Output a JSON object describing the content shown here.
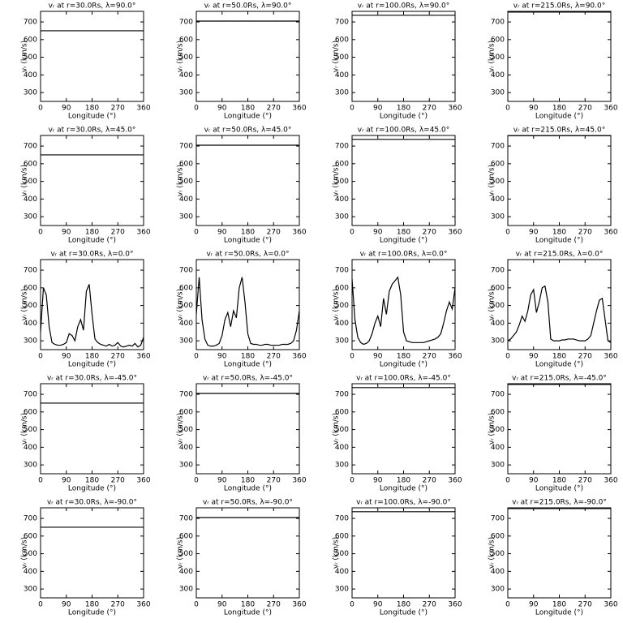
{
  "chart_data": [
    {
      "type": "line",
      "title": "vᵣ at r=30.0Rs, λ=90.0°",
      "xlabel": "Longitude (°)",
      "ylabel": "vᵣ (km/s)",
      "x": [
        0,
        360
      ],
      "values": [
        650,
        650
      ],
      "xlim": [
        0,
        360
      ],
      "ylim": [
        250,
        760
      ],
      "xticks": [
        0,
        90,
        180,
        270,
        360
      ],
      "yticks": [
        300,
        400,
        500,
        600,
        700
      ],
      "color": "#000000"
    },
    {
      "type": "line",
      "title": "vᵣ at r=50.0Rs, λ=90.0°",
      "xlabel": "Longitude (°)",
      "ylabel": "vᵣ (km/s)",
      "x": [
        0,
        360
      ],
      "values": [
        705,
        705
      ],
      "xlim": [
        0,
        360
      ],
      "ylim": [
        250,
        760
      ],
      "xticks": [
        0,
        90,
        180,
        270,
        360
      ],
      "yticks": [
        300,
        400,
        500,
        600,
        700
      ],
      "color": "#000000"
    },
    {
      "type": "line",
      "title": "vᵣ at r=100.0Rs, λ=90.0°",
      "xlabel": "Longitude (°)",
      "ylabel": "vᵣ (km/s)",
      "x": [
        0,
        360
      ],
      "values": [
        738,
        738
      ],
      "xlim": [
        0,
        360
      ],
      "ylim": [
        250,
        760
      ],
      "xticks": [
        0,
        90,
        180,
        270,
        360
      ],
      "yticks": [
        300,
        400,
        500,
        600,
        700
      ],
      "color": "#000000"
    },
    {
      "type": "line",
      "title": "vᵣ at r=215.0Rs, λ=90.0°",
      "xlabel": "Longitude (°)",
      "ylabel": "vᵣ (km/s)",
      "x": [
        0,
        360
      ],
      "values": [
        756,
        756
      ],
      "xlim": [
        0,
        360
      ],
      "ylim": [
        250,
        760
      ],
      "xticks": [
        0,
        90,
        180,
        270,
        360
      ],
      "yticks": [
        300,
        400,
        500,
        600,
        700
      ],
      "color": "#000000"
    },
    {
      "type": "line",
      "title": "vᵣ at r=30.0Rs, λ=45.0°",
      "xlabel": "Longitude (°)",
      "ylabel": "vᵣ (km/s)",
      "x": [
        0,
        360
      ],
      "values": [
        650,
        650
      ],
      "xlim": [
        0,
        360
      ],
      "ylim": [
        250,
        760
      ],
      "xticks": [
        0,
        90,
        180,
        270,
        360
      ],
      "yticks": [
        300,
        400,
        500,
        600,
        700
      ],
      "color": "#000000"
    },
    {
      "type": "line",
      "title": "vᵣ at r=50.0Rs, λ=45.0°",
      "xlabel": "Longitude (°)",
      "ylabel": "vᵣ (km/s)",
      "x": [
        0,
        360
      ],
      "values": [
        705,
        705
      ],
      "xlim": [
        0,
        360
      ],
      "ylim": [
        250,
        760
      ],
      "xticks": [
        0,
        90,
        180,
        270,
        360
      ],
      "yticks": [
        300,
        400,
        500,
        600,
        700
      ],
      "color": "#000000"
    },
    {
      "type": "line",
      "title": "vᵣ at r=100.0Rs, λ=45.0°",
      "xlabel": "Longitude (°)",
      "ylabel": "vᵣ (km/s)",
      "x": [
        0,
        360
      ],
      "values": [
        738,
        738
      ],
      "xlim": [
        0,
        360
      ],
      "ylim": [
        250,
        760
      ],
      "xticks": [
        0,
        90,
        180,
        270,
        360
      ],
      "yticks": [
        300,
        400,
        500,
        600,
        700
      ],
      "color": "#000000"
    },
    {
      "type": "line",
      "title": "vᵣ at r=215.0Rs, λ=45.0°",
      "xlabel": "Longitude (°)",
      "ylabel": "vᵣ (km/s)",
      "x": [
        0,
        360
      ],
      "values": [
        759,
        759
      ],
      "xlim": [
        0,
        360
      ],
      "ylim": [
        250,
        760
      ],
      "xticks": [
        0,
        90,
        180,
        270,
        360
      ],
      "yticks": [
        300,
        400,
        500,
        600,
        700
      ],
      "color": "#000000"
    },
    {
      "type": "line",
      "title": "vᵣ at r=30.0Rs, λ=0.0°",
      "xlabel": "Longitude (°)",
      "ylabel": "vᵣ (km/s)",
      "x": [
        0,
        10,
        20,
        30,
        40,
        50,
        60,
        70,
        80,
        90,
        100,
        110,
        120,
        130,
        140,
        150,
        160,
        170,
        180,
        190,
        200,
        210,
        220,
        230,
        240,
        250,
        260,
        270,
        280,
        290,
        300,
        310,
        320,
        330,
        340,
        350,
        360
      ],
      "values": [
        350,
        600,
        560,
        380,
        290,
        280,
        275,
        275,
        280,
        290,
        340,
        330,
        300,
        380,
        420,
        360,
        580,
        620,
        450,
        310,
        290,
        280,
        275,
        270,
        280,
        270,
        275,
        290,
        270,
        265,
        270,
        275,
        270,
        285,
        265,
        275,
        320
      ],
      "xlim": [
        0,
        360
      ],
      "ylim": [
        250,
        760
      ],
      "xticks": [
        0,
        90,
        180,
        270,
        360
      ],
      "yticks": [
        300,
        400,
        500,
        600,
        700
      ],
      "color": "#000000"
    },
    {
      "type": "line",
      "title": "vᵣ at r=50.0Rs, λ=0.0°",
      "xlabel": "Longitude (°)",
      "ylabel": "vᵣ (km/s)",
      "x": [
        0,
        10,
        20,
        30,
        40,
        50,
        60,
        70,
        80,
        90,
        100,
        110,
        120,
        130,
        140,
        150,
        160,
        170,
        180,
        190,
        200,
        210,
        220,
        230,
        240,
        250,
        260,
        270,
        280,
        290,
        300,
        310,
        320,
        330,
        340,
        350,
        360
      ],
      "values": [
        450,
        660,
        420,
        310,
        275,
        270,
        270,
        275,
        285,
        330,
        420,
        460,
        380,
        470,
        430,
        600,
        660,
        520,
        340,
        285,
        280,
        280,
        275,
        275,
        280,
        280,
        275,
        275,
        275,
        275,
        280,
        280,
        280,
        285,
        300,
        360,
        470
      ],
      "xlim": [
        0,
        360
      ],
      "ylim": [
        250,
        760
      ],
      "xticks": [
        0,
        90,
        180,
        270,
        360
      ],
      "yticks": [
        300,
        400,
        500,
        600,
        700
      ],
      "color": "#000000"
    },
    {
      "type": "line",
      "title": "vᵣ at r=100.0Rs, λ=0.0°",
      "xlabel": "Longitude (°)",
      "ylabel": "vᵣ (km/s)",
      "x": [
        0,
        10,
        20,
        30,
        40,
        50,
        60,
        70,
        80,
        90,
        100,
        110,
        120,
        130,
        140,
        150,
        160,
        170,
        180,
        190,
        200,
        210,
        220,
        230,
        240,
        250,
        260,
        270,
        280,
        290,
        300,
        310,
        320,
        330,
        340,
        350,
        360
      ],
      "values": [
        650,
        420,
        320,
        290,
        280,
        285,
        300,
        340,
        400,
        440,
        380,
        540,
        450,
        580,
        620,
        640,
        660,
        560,
        350,
        300,
        295,
        290,
        290,
        290,
        290,
        290,
        295,
        300,
        305,
        310,
        320,
        340,
        400,
        470,
        520,
        480,
        600
      ],
      "xlim": [
        0,
        360
      ],
      "ylim": [
        250,
        760
      ],
      "xticks": [
        0,
        90,
        180,
        270,
        360
      ],
      "yticks": [
        300,
        400,
        500,
        600,
        700
      ],
      "color": "#000000"
    },
    {
      "type": "line",
      "title": "vᵣ at r=215.0Rs, λ=0.0°",
      "xlabel": "Longitude (°)",
      "ylabel": "vᵣ (km/s)",
      "x": [
        0,
        10,
        20,
        30,
        40,
        50,
        60,
        70,
        80,
        90,
        100,
        110,
        120,
        130,
        140,
        150,
        160,
        170,
        180,
        190,
        200,
        210,
        220,
        230,
        240,
        250,
        260,
        270,
        280,
        290,
        300,
        310,
        320,
        330,
        340,
        350,
        360
      ],
      "values": [
        300,
        310,
        330,
        350,
        390,
        440,
        410,
        470,
        560,
        590,
        460,
        520,
        600,
        610,
        520,
        310,
        300,
        300,
        300,
        305,
        305,
        310,
        310,
        310,
        305,
        300,
        300,
        300,
        310,
        330,
        400,
        470,
        530,
        540,
        420,
        300,
        290
      ],
      "xlim": [
        0,
        360
      ],
      "ylim": [
        250,
        760
      ],
      "xticks": [
        0,
        90,
        180,
        270,
        360
      ],
      "yticks": [
        300,
        400,
        500,
        600,
        700
      ],
      "color": "#000000"
    },
    {
      "type": "line",
      "title": "vᵣ at r=30.0Rs, λ=-45.0°",
      "xlabel": "Longitude (°)",
      "ylabel": "vᵣ (km/s)",
      "x": [
        0,
        360
      ],
      "values": [
        650,
        650
      ],
      "xlim": [
        0,
        360
      ],
      "ylim": [
        250,
        760
      ],
      "xticks": [
        0,
        90,
        180,
        270,
        360
      ],
      "yticks": [
        300,
        400,
        500,
        600,
        700
      ],
      "color": "#000000"
    },
    {
      "type": "line",
      "title": "vᵣ at r=50.0Rs, λ=-45.0°",
      "xlabel": "Longitude (°)",
      "ylabel": "vᵣ (km/s)",
      "x": [
        0,
        360
      ],
      "values": [
        705,
        705
      ],
      "xlim": [
        0,
        360
      ],
      "ylim": [
        250,
        760
      ],
      "xticks": [
        0,
        90,
        180,
        270,
        360
      ],
      "yticks": [
        300,
        400,
        500,
        600,
        700
      ],
      "color": "#000000"
    },
    {
      "type": "line",
      "title": "vᵣ at r=100.0Rs, λ=-45.0°",
      "xlabel": "Longitude (°)",
      "ylabel": "vᵣ (km/s)",
      "x": [
        0,
        360
      ],
      "values": [
        738,
        738
      ],
      "xlim": [
        0,
        360
      ],
      "ylim": [
        250,
        760
      ],
      "xticks": [
        0,
        90,
        180,
        270,
        360
      ],
      "yticks": [
        300,
        400,
        500,
        600,
        700
      ],
      "color": "#000000"
    },
    {
      "type": "line",
      "title": "vᵣ at r=215.0Rs, λ=-45.0°",
      "xlabel": "Longitude (°)",
      "ylabel": "vᵣ (km/s)",
      "x": [
        0,
        360
      ],
      "values": [
        756,
        756
      ],
      "xlim": [
        0,
        360
      ],
      "ylim": [
        250,
        760
      ],
      "xticks": [
        0,
        90,
        180,
        270,
        360
      ],
      "yticks": [
        300,
        400,
        500,
        600,
        700
      ],
      "color": "#000000"
    },
    {
      "type": "line",
      "title": "vᵣ at r=30.0Rs, λ=-90.0°",
      "xlabel": "Longitude (°)",
      "ylabel": "vᵣ (km/s)",
      "x": [
        0,
        360
      ],
      "values": [
        650,
        650
      ],
      "xlim": [
        0,
        360
      ],
      "ylim": [
        250,
        760
      ],
      "xticks": [
        0,
        90,
        180,
        270,
        360
      ],
      "yticks": [
        300,
        400,
        500,
        600,
        700
      ],
      "color": "#000000"
    },
    {
      "type": "line",
      "title": "vᵣ at r=50.0Rs, λ=-90.0°",
      "xlabel": "Longitude (°)",
      "ylabel": "vᵣ (km/s)",
      "x": [
        0,
        360
      ],
      "values": [
        705,
        705
      ],
      "xlim": [
        0,
        360
      ],
      "ylim": [
        250,
        760
      ],
      "xticks": [
        0,
        90,
        180,
        270,
        360
      ],
      "yticks": [
        300,
        400,
        500,
        600,
        700
      ],
      "color": "#000000"
    },
    {
      "type": "line",
      "title": "vᵣ at r=100.0Rs, λ=-90.0°",
      "xlabel": "Longitude (°)",
      "ylabel": "vᵣ (km/s)",
      "x": [
        0,
        360
      ],
      "values": [
        738,
        738
      ],
      "xlim": [
        0,
        360
      ],
      "ylim": [
        250,
        760
      ],
      "xticks": [
        0,
        90,
        180,
        270,
        360
      ],
      "yticks": [
        300,
        400,
        500,
        600,
        700
      ],
      "color": "#000000"
    },
    {
      "type": "line",
      "title": "vᵣ at r=215.0Rs, λ=-90.0°",
      "xlabel": "Longitude (°)",
      "ylabel": "vᵣ (km/s)",
      "x": [
        0,
        360
      ],
      "values": [
        756,
        756
      ],
      "xlim": [
        0,
        360
      ],
      "ylim": [
        250,
        760
      ],
      "xticks": [
        0,
        90,
        180,
        270,
        360
      ],
      "yticks": [
        300,
        400,
        500,
        600,
        700
      ],
      "color": "#000000"
    }
  ]
}
